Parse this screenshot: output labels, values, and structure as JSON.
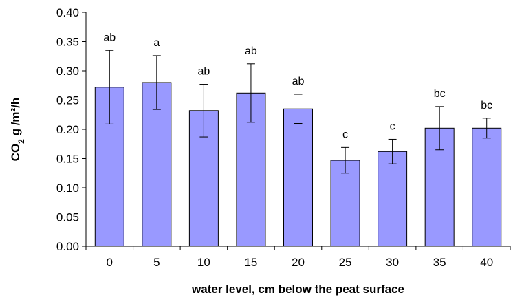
{
  "chart_data": {
    "type": "bar",
    "title": "",
    "xlabel": "water level, cm below the peat surface",
    "ylabel_parts": {
      "base": "CO",
      "sub": "2",
      "rest": " g /m²/h"
    },
    "categories": [
      "0",
      "5",
      "10",
      "15",
      "20",
      "25",
      "30",
      "35",
      "40"
    ],
    "values": [
      0.272,
      0.28,
      0.232,
      0.262,
      0.235,
      0.147,
      0.162,
      0.202,
      0.202
    ],
    "error_upper": [
      0.335,
      0.326,
      0.277,
      0.312,
      0.26,
      0.169,
      0.183,
      0.239,
      0.219
    ],
    "error_lower": [
      0.209,
      0.234,
      0.187,
      0.212,
      0.21,
      0.125,
      0.141,
      0.165,
      0.185
    ],
    "significance_letters": [
      "ab",
      "a",
      "ab",
      "ab",
      "ab",
      "c",
      "c",
      "bc",
      "bc"
    ],
    "ylim": [
      0,
      0.4
    ],
    "yticks": [
      "0.00",
      "0.05",
      "0.10",
      "0.15",
      "0.20",
      "0.25",
      "0.30",
      "0.35",
      "0.40"
    ],
    "grid": false,
    "colors": {
      "bar_fill": "#9999ff",
      "bar_stroke": "#000000",
      "axis": "#000000"
    }
  }
}
